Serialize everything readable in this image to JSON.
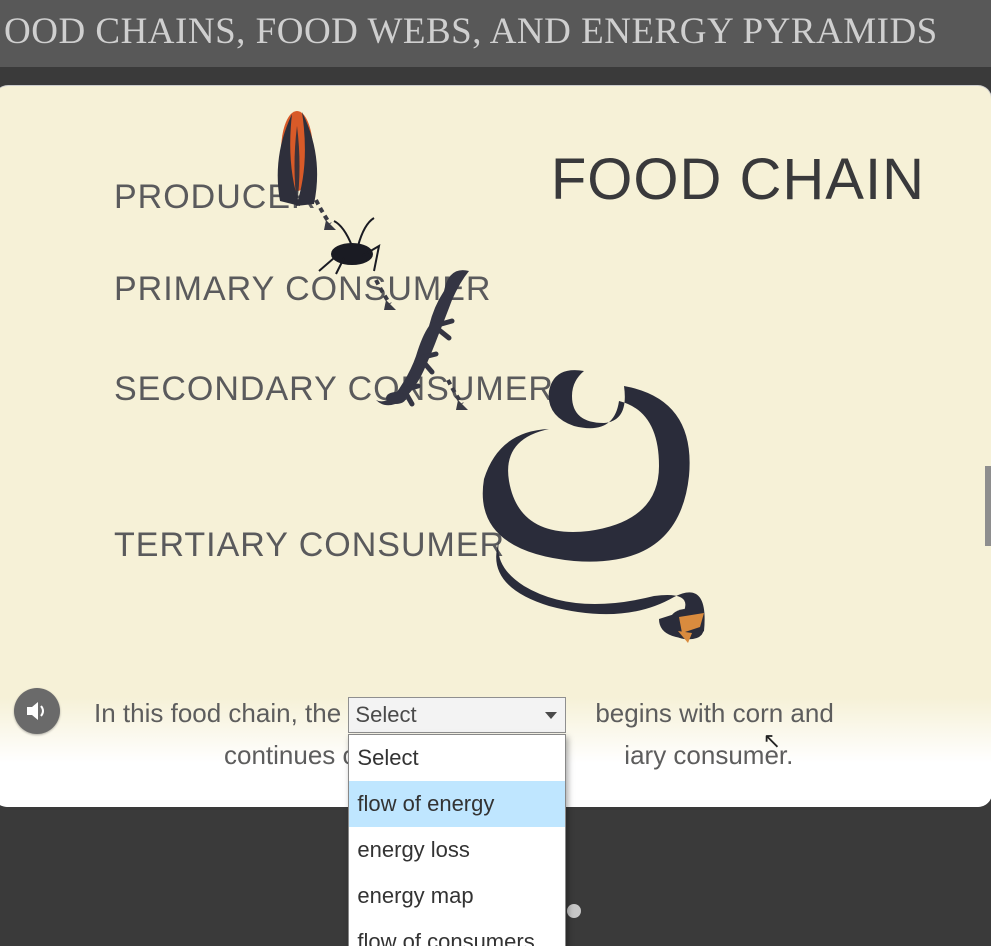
{
  "header": {
    "title": "OOD CHAINS, FOOD WEBS, AND ENERGY PYRAMIDS"
  },
  "slide": {
    "title": "FOOD CHAIN",
    "background_color": "#f6f1d7",
    "labels": {
      "producer": "PRODUCER",
      "primary": "PRIMARY CONSUMER",
      "secondary": "SECONDARY CONSUMER",
      "tertiary": "TERTIARY CONSUMER"
    },
    "label_color": "#5a5a5c",
    "label_fontsize": 34,
    "title_color": "#39393b",
    "title_fontsize": 58,
    "organisms": {
      "corn": {
        "colors": {
          "husk": "#2e2f3b",
          "kernel": "#d85a28"
        }
      },
      "cricket": {
        "colors": {
          "body": "#1a1b23"
        }
      },
      "lizard": {
        "colors": {
          "body": "#343543"
        }
      },
      "snake": {
        "colors": {
          "body": "#2a2c3a",
          "mouth": "#d98b3e"
        }
      }
    },
    "arrow_color": "#3a3b45"
  },
  "question": {
    "prefix": "In this food chain, the",
    "middle": "begins with corn and",
    "line2a": "continues on",
    "line2b": "iary consumer.",
    "select_placeholder": "Select",
    "options": [
      "Select",
      "flow of energy",
      "energy loss",
      "energy map",
      "flow of consumers"
    ],
    "highlighted_index": 1,
    "text_color": "#5d5d5d",
    "text_fontsize": 26
  },
  "pagination": {
    "total": 7,
    "current": 1,
    "active_color": "#2f88d6",
    "inactive_color": "#c7c7c7",
    "hidden_indices": [
      2,
      3
    ]
  },
  "audio_icon_bg": "#6a6a6a"
}
